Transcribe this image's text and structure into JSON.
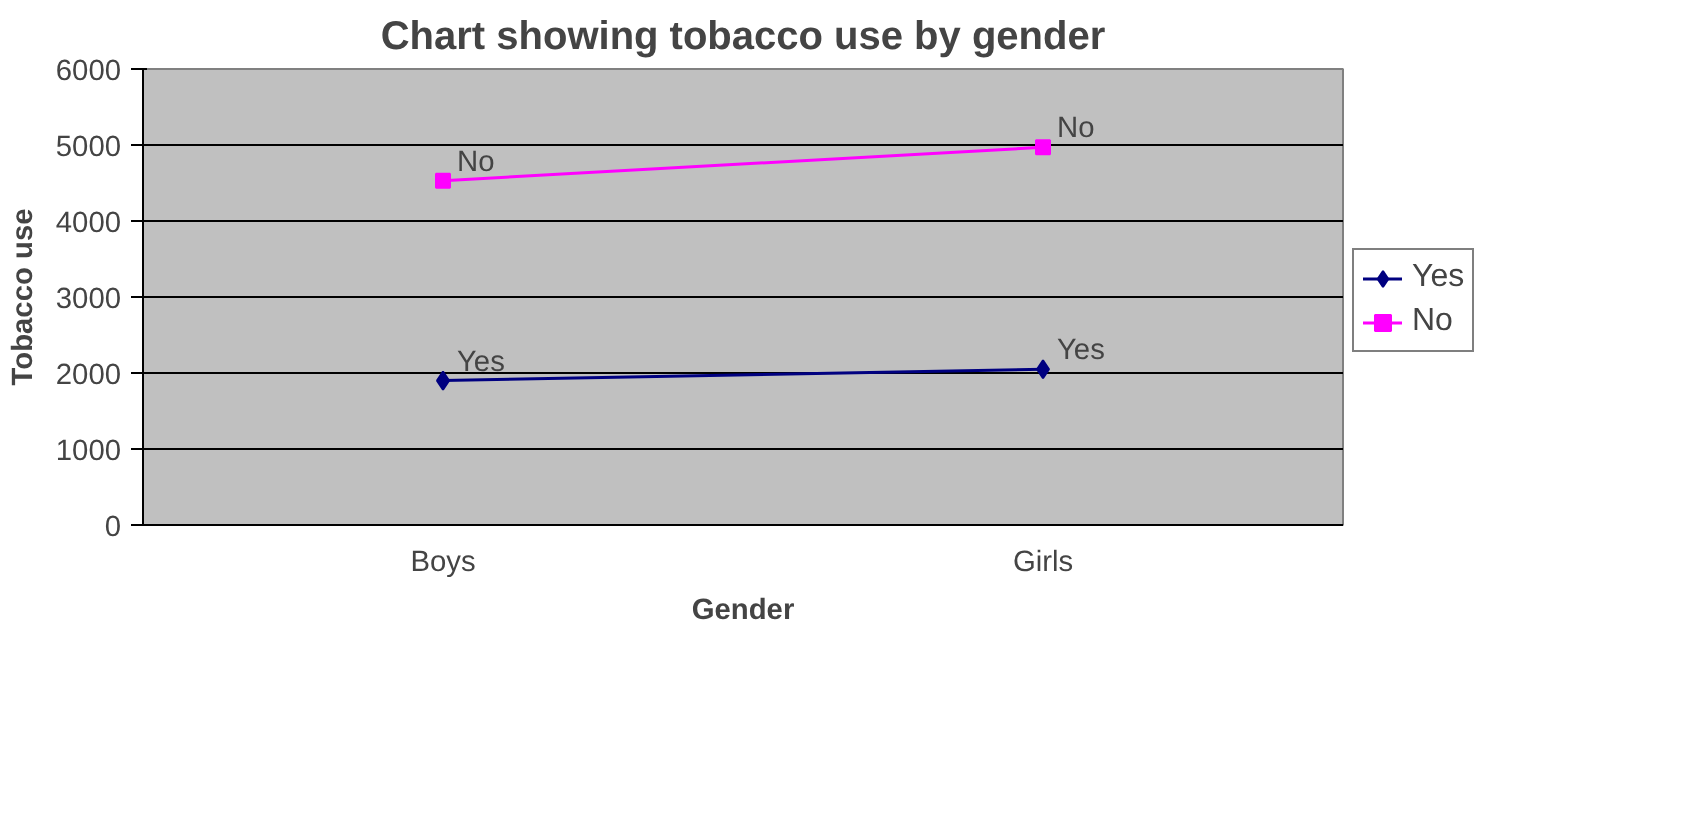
{
  "chart_data": {
    "type": "line",
    "title": "Chart showing tobacco use by gender",
    "xlabel": "Gender",
    "ylabel": "Tobacco use",
    "categories": [
      "Boys",
      "Girls"
    ],
    "series": [
      {
        "name": "Yes",
        "color": "#000080",
        "values": [
          1900,
          2050
        ],
        "marker": "diamond"
      },
      {
        "name": "No",
        "color": "#ff00ff",
        "values": [
          4530,
          4970
        ],
        "marker": "square"
      }
    ],
    "annotations": [
      {
        "text": "Yes",
        "x": "Boys",
        "y": 1900
      },
      {
        "text": "Yes",
        "x": "Girls",
        "y": 2050
      },
      {
        "text": "No",
        "x": "Boys",
        "y": 4530
      },
      {
        "text": "No",
        "x": "Girls",
        "y": 4970
      }
    ],
    "ylim": [
      0,
      6000
    ],
    "yticks": [
      0,
      1000,
      2000,
      3000,
      4000,
      5000,
      6000
    ],
    "grid": "y",
    "legend": "right",
    "line_style": "solid"
  }
}
